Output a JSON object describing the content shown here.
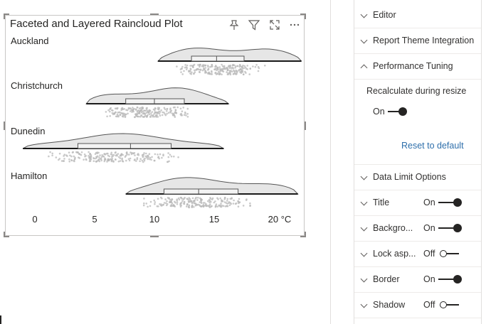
{
  "visual": {
    "title": "Faceted and Layered Raincloud Plot",
    "header_icons": [
      "pin-icon",
      "filter-icon",
      "focus-mode-icon",
      "more-options-icon"
    ]
  },
  "chart_data": {
    "type": "raincloud",
    "title": "Faceted and Layered Raincloud Plot",
    "xlim": [
      -2.5,
      22
    ],
    "x_ticks": [
      "0",
      "5",
      "10",
      "15",
      "20 °C"
    ],
    "facets": [
      {
        "name": "Auckland",
        "min": 10.3,
        "q1": 13.1,
        "median": 15.2,
        "q3": 17.5,
        "max": 22.3
      },
      {
        "name": "Christchurch",
        "min": 4.3,
        "q1": 7.6,
        "median": 10.0,
        "q3": 12.5,
        "max": 16.2
      },
      {
        "name": "Dunedin",
        "min": -1.0,
        "q1": 3.6,
        "median": 8.0,
        "q3": 11.4,
        "max": 15.8
      },
      {
        "name": "Hamilton",
        "min": 7.6,
        "q1": 10.8,
        "median": 13.7,
        "q3": 17.0,
        "max": 22.0
      }
    ]
  },
  "format_pane": {
    "sections": [
      {
        "label": "Editor",
        "expanded": false
      },
      {
        "label": "Report Theme Integration",
        "expanded": false
      },
      {
        "label": "Performance Tuning",
        "expanded": true
      }
    ],
    "performance": {
      "recalc_label": "Recalculate during resize",
      "recalc_state": "On",
      "reset_label": "Reset to default"
    },
    "more_sections": [
      {
        "label": "Data Limit Options"
      },
      {
        "label": "Title",
        "state": "On",
        "on": true
      },
      {
        "label": "Backgro...",
        "state": "On",
        "on": true
      },
      {
        "label": "Lock asp...",
        "state": "Off",
        "on": false
      },
      {
        "label": "Border",
        "state": "On",
        "on": true
      },
      {
        "label": "Shadow",
        "state": "Off",
        "on": false
      }
    ]
  },
  "colors": {
    "accent_link": "#2e6fab",
    "cloud_fill": "#e6e6e6",
    "cloud_stroke": "#555555",
    "rain": "#b8b8b8"
  }
}
